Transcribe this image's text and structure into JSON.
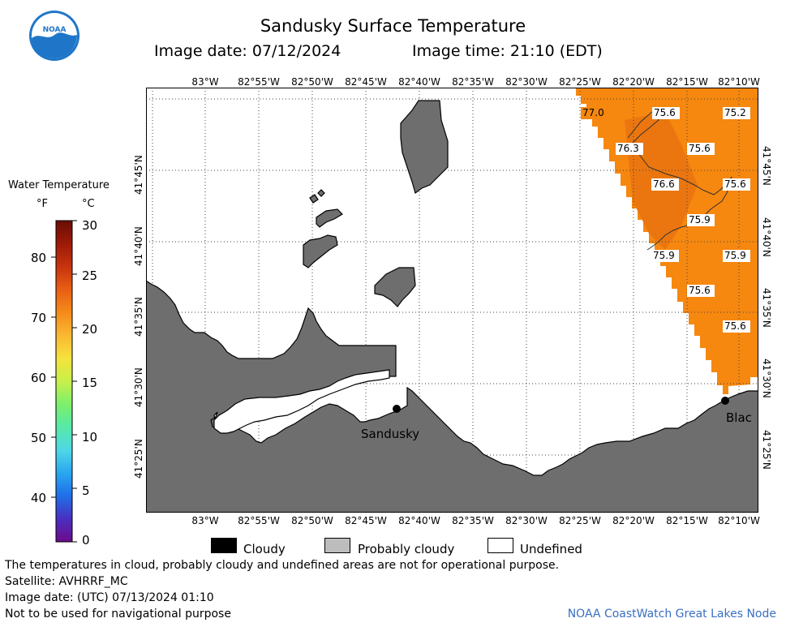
{
  "header": {
    "title": "Sandusky Surface Temperature",
    "image_date": "Image date: 07/12/2024",
    "image_time": "Image time: 21:10 (EDT)"
  },
  "logo": {
    "text": "NOAA"
  },
  "axes": {
    "longitude_ticks": [
      "83°W",
      "82°55'W",
      "82°50'W",
      "82°45'W",
      "82°40'W",
      "82°35'W",
      "82°30'W",
      "82°25'W",
      "82°20'W",
      "82°15'W",
      "82°10'W"
    ],
    "latitude_ticks": [
      "41°45'N",
      "41°40'N",
      "41°35'N",
      "41°30'N",
      "41°25'N"
    ]
  },
  "legend": {
    "title": "Water Temperature",
    "unit_f": "°F",
    "unit_c": "°C",
    "f_labels": [
      "80",
      "70",
      "60",
      "50",
      "40"
    ],
    "c_labels": [
      "30",
      "25",
      "20",
      "15",
      "10",
      "5",
      "0"
    ],
    "colors": [
      "#6e0a8a",
      "#4a2fc0",
      "#1e6fe8",
      "#2aa6f0",
      "#4fd8e6",
      "#56e9a8",
      "#7cf06a",
      "#c8f04a",
      "#f6e23c",
      "#f9b832",
      "#f58a1a",
      "#e85e14",
      "#c8330e",
      "#9c1a08",
      "#6a0c04"
    ]
  },
  "map": {
    "city_labels": {
      "sandusky": "Sandusky",
      "blac": "Blac"
    },
    "temperature_labels": [
      "77.0",
      "75.6",
      "75.2",
      "76.3",
      "75.6",
      "76.6",
      "75.6",
      "75.9",
      "75.9",
      "75.9",
      "75.6",
      "75.6"
    ]
  },
  "key": {
    "cloudy": "Cloudy",
    "probably_cloudy": "Probably cloudy",
    "undefined": "Undefined"
  },
  "footer": {
    "disclaimer": "The temperatures in cloud, probably cloudy and undefined areas are not for operational purpose.",
    "satellite": "Satellite: AVHRRF_MC",
    "utc_date": "Image date: (UTC) 07/13/2024  01:10",
    "nav_warning": "Not to be used for navigational purpose",
    "credit": "NOAA CoastWatch Great Lakes Node"
  }
}
